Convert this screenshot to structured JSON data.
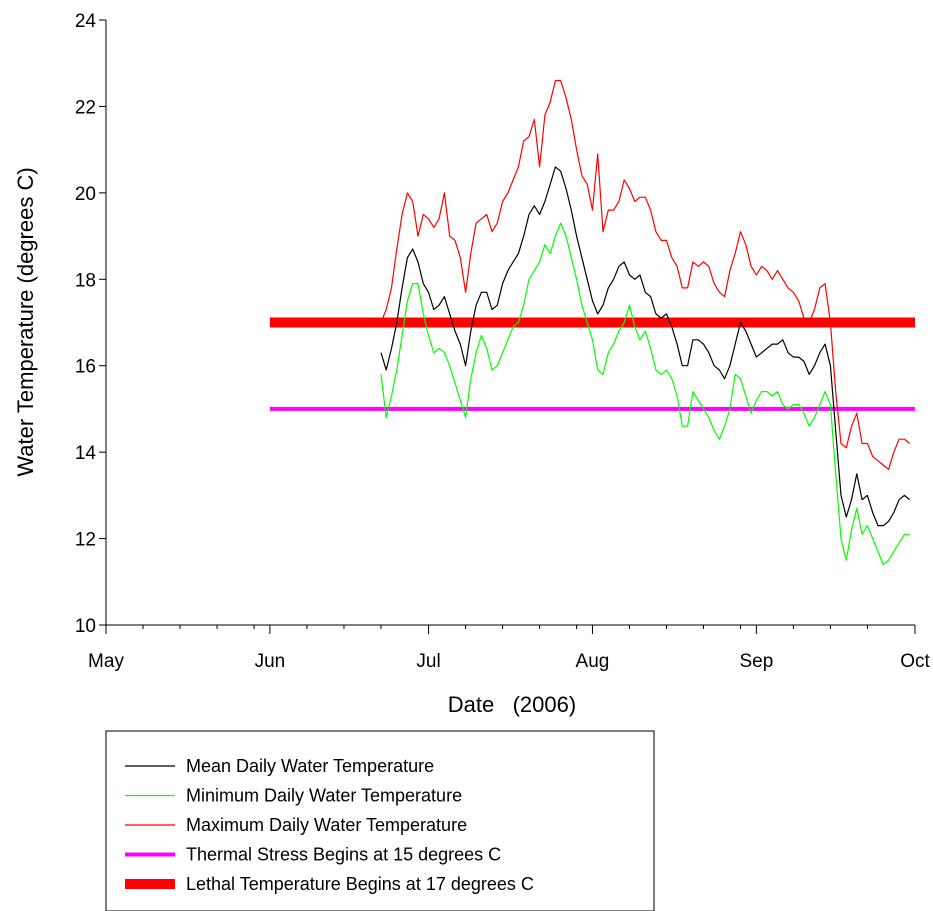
{
  "chart_data": {
    "type": "line",
    "title": "",
    "xlabel": "Date   (2006)",
    "ylabel": "Water Temperature (degrees C)",
    "ylim": [
      10,
      24
    ],
    "yticks": [
      "10",
      "12",
      "14",
      "16",
      "18",
      "20",
      "22",
      "24"
    ],
    "xlim": [
      "2006-05-01",
      "2006-10-01"
    ],
    "xticks": [
      {
        "date": "2006-05-01",
        "label": "May"
      },
      {
        "date": "2006-06-01",
        "label": "Jun"
      },
      {
        "date": "2006-07-01",
        "label": "Jul"
      },
      {
        "date": "2006-08-01",
        "label": "Aug"
      },
      {
        "date": "2006-09-01",
        "label": "Sep"
      },
      {
        "date": "2006-10-01",
        "label": "Oct"
      }
    ],
    "x_start": "2006-06-22",
    "grid": false,
    "legend_position": "below",
    "series": [
      {
        "name": "Mean Daily Water Temperature",
        "color": "#000000",
        "style": "thin",
        "values": [
          16.3,
          15.9,
          16.4,
          17.0,
          17.8,
          18.5,
          18.7,
          18.4,
          17.9,
          17.7,
          17.3,
          17.4,
          17.6,
          17.2,
          16.8,
          16.5,
          16.0,
          16.8,
          17.4,
          17.7,
          17.7,
          17.3,
          17.4,
          17.9,
          18.2,
          18.4,
          18.6,
          19.0,
          19.5,
          19.7,
          19.5,
          19.8,
          20.2,
          20.6,
          20.5,
          20.1,
          19.6,
          19.0,
          18.5,
          18.0,
          17.5,
          17.2,
          17.4,
          17.8,
          18.0,
          18.3,
          18.4,
          18.1,
          18.0,
          18.1,
          17.7,
          17.6,
          17.2,
          17.1,
          17.2,
          16.9,
          16.5,
          16.0,
          16.0,
          16.6,
          16.6,
          16.5,
          16.3,
          16.0,
          15.9,
          15.7,
          16.0,
          16.5,
          17.0,
          16.8,
          16.5,
          16.2,
          16.3,
          16.4,
          16.5,
          16.5,
          16.6,
          16.3,
          16.2,
          16.2,
          16.1,
          15.8,
          16.0,
          16.3,
          16.5,
          16.0,
          14.5,
          13.0,
          12.5,
          12.9,
          13.5,
          12.9,
          13.0,
          12.6,
          12.3,
          12.3,
          12.4,
          12.6,
          12.9,
          13.0,
          12.9
        ]
      },
      {
        "name": "Minimum Daily Water Temperature",
        "color": "#00ff00",
        "style": "thin",
        "values": [
          15.8,
          14.8,
          15.3,
          15.9,
          16.7,
          17.5,
          17.9,
          17.9,
          17.2,
          16.7,
          16.3,
          16.4,
          16.3,
          16.0,
          15.6,
          15.2,
          14.8,
          15.7,
          16.3,
          16.7,
          16.4,
          15.9,
          16.0,
          16.3,
          16.6,
          16.9,
          17.0,
          17.4,
          18.0,
          18.2,
          18.4,
          18.8,
          18.6,
          19.0,
          19.3,
          19.0,
          18.5,
          18.0,
          17.4,
          17.0,
          16.6,
          15.9,
          15.8,
          16.3,
          16.5,
          16.8,
          17.0,
          17.4,
          16.9,
          16.6,
          16.8,
          16.4,
          15.9,
          15.8,
          15.9,
          15.7,
          15.3,
          14.6,
          14.6,
          15.4,
          15.2,
          15.0,
          14.8,
          14.5,
          14.3,
          14.6,
          15.0,
          15.8,
          15.7,
          15.3,
          14.9,
          15.2,
          15.4,
          15.4,
          15.3,
          15.4,
          15.1,
          15.0,
          15.1,
          15.1,
          14.9,
          14.6,
          14.8,
          15.1,
          15.4,
          15.1,
          13.5,
          12.0,
          11.5,
          12.2,
          12.7,
          12.1,
          12.3,
          12.0,
          11.7,
          11.4,
          11.5,
          11.7,
          11.9,
          12.1,
          12.1
        ]
      },
      {
        "name": "Maximum Daily Water Temperature",
        "color": "#ff0000",
        "style": "thin",
        "values": [
          17.0,
          17.3,
          17.8,
          18.7,
          19.5,
          20.0,
          19.8,
          19.0,
          19.5,
          19.4,
          19.2,
          19.4,
          20.0,
          19.0,
          18.9,
          18.5,
          17.7,
          18.6,
          19.3,
          19.4,
          19.5,
          19.1,
          19.3,
          19.8,
          20.0,
          20.3,
          20.6,
          21.2,
          21.3,
          21.7,
          20.6,
          21.8,
          22.1,
          22.6,
          22.6,
          22.2,
          21.7,
          21.0,
          20.4,
          20.2,
          19.6,
          20.9,
          19.1,
          19.6,
          19.6,
          19.8,
          20.3,
          20.1,
          19.8,
          19.9,
          19.9,
          19.6,
          19.1,
          18.9,
          18.9,
          18.5,
          18.3,
          17.8,
          17.8,
          18.4,
          18.3,
          18.4,
          18.3,
          17.9,
          17.7,
          17.6,
          18.2,
          18.6,
          19.1,
          18.8,
          18.3,
          18.1,
          18.3,
          18.2,
          18.0,
          18.2,
          18.0,
          17.8,
          17.7,
          17.5,
          17.1,
          17.0,
          17.3,
          17.8,
          17.9,
          17.0,
          15.4,
          14.2,
          14.1,
          14.6,
          14.9,
          14.2,
          14.2,
          13.9,
          13.8,
          13.7,
          13.6,
          14.0,
          14.3,
          14.3,
          14.2
        ]
      },
      {
        "name": "Thermal Stress Begins at 15 degrees C",
        "color": "#ff00ff",
        "style": "medium",
        "x": [
          "2006-06-01",
          "2006-10-01"
        ],
        "values": [
          15,
          15
        ]
      },
      {
        "name": "Lethal Temperature Begins at 17 degrees C",
        "color": "#ff0000",
        "style": "thick",
        "x": [
          "2006-06-01",
          "2006-10-01"
        ],
        "values": [
          17,
          17
        ]
      }
    ]
  }
}
